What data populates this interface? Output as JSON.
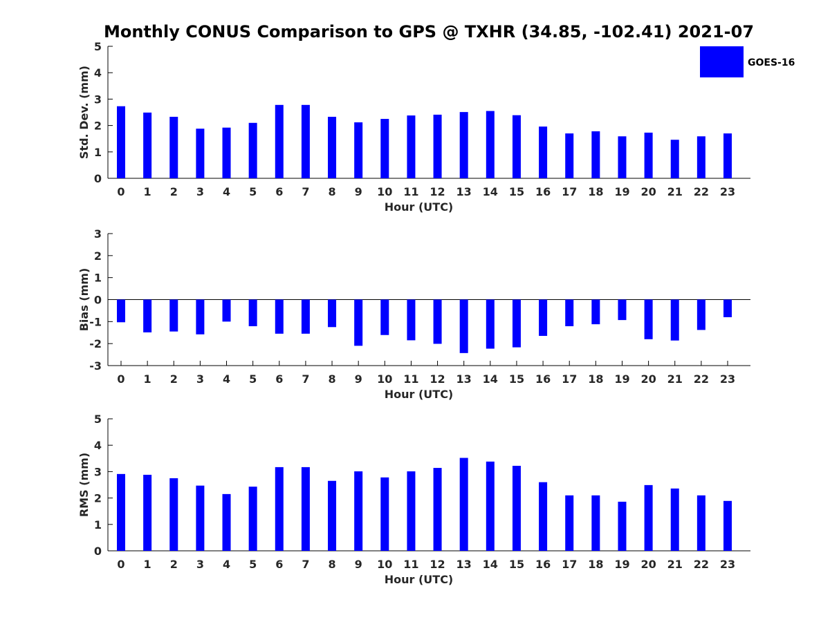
{
  "figure": {
    "title": "Monthly CONUS Comparison to GPS @ TXHR (34.85, -102.41) 2021-07"
  },
  "legend": {
    "label": "GOES-16",
    "color": "#0000ff",
    "placement": "top-right"
  },
  "chart_data": [
    {
      "type": "bar",
      "ylabel": "Std. Dev. (mm)",
      "xlabel": "Hour (UTC)",
      "categories": [
        "0",
        "1",
        "2",
        "3",
        "4",
        "5",
        "6",
        "7",
        "8",
        "9",
        "10",
        "11",
        "12",
        "13",
        "14",
        "15",
        "16",
        "17",
        "18",
        "19",
        "20",
        "21",
        "22",
        "23"
      ],
      "ylim": [
        0,
        5
      ],
      "yticks": [
        0,
        1,
        2,
        3,
        4,
        5
      ],
      "series": [
        {
          "name": "GOES-16",
          "color": "#0000ff",
          "values": [
            2.73,
            2.49,
            2.33,
            1.88,
            1.92,
            2.1,
            2.78,
            2.78,
            2.33,
            2.12,
            2.25,
            2.38,
            2.41,
            2.51,
            2.55,
            2.39,
            1.96,
            1.7,
            1.78,
            1.59,
            1.73,
            1.46,
            1.59,
            1.7
          ]
        }
      ]
    },
    {
      "type": "bar",
      "ylabel": "Bias (mm)",
      "xlabel": "Hour (UTC)",
      "categories": [
        "0",
        "1",
        "2",
        "3",
        "4",
        "5",
        "6",
        "7",
        "8",
        "9",
        "10",
        "11",
        "12",
        "13",
        "14",
        "15",
        "16",
        "17",
        "18",
        "19",
        "20",
        "21",
        "22",
        "23"
      ],
      "ylim": [
        -3,
        3
      ],
      "yticks": [
        -3,
        -2,
        -1,
        0,
        1,
        2,
        3
      ],
      "zero_line": true,
      "series": [
        {
          "name": "GOES-16",
          "color": "#0000ff",
          "values": [
            -1.03,
            -1.49,
            -1.45,
            -1.58,
            -1.0,
            -1.21,
            -1.55,
            -1.55,
            -1.25,
            -2.1,
            -1.61,
            -1.85,
            -2.01,
            -2.43,
            -2.23,
            -2.17,
            -1.65,
            -1.21,
            -1.12,
            -0.93,
            -1.8,
            -1.86,
            -1.38,
            -0.8
          ]
        }
      ]
    },
    {
      "type": "bar",
      "ylabel": "RMS (mm)",
      "xlabel": "Hour (UTC)",
      "categories": [
        "0",
        "1",
        "2",
        "3",
        "4",
        "5",
        "6",
        "7",
        "8",
        "9",
        "10",
        "11",
        "12",
        "13",
        "14",
        "15",
        "16",
        "17",
        "18",
        "19",
        "20",
        "21",
        "22",
        "23"
      ],
      "ylim": [
        0,
        5
      ],
      "yticks": [
        0,
        1,
        2,
        3,
        4,
        5
      ],
      "series": [
        {
          "name": "GOES-16",
          "color": "#0000ff",
          "values": [
            2.91,
            2.88,
            2.75,
            2.47,
            2.15,
            2.43,
            3.17,
            3.17,
            2.65,
            3.01,
            2.78,
            3.01,
            3.14,
            3.52,
            3.38,
            3.22,
            2.6,
            2.1,
            2.1,
            1.86,
            2.49,
            2.36,
            2.1,
            1.89
          ]
        }
      ]
    }
  ]
}
